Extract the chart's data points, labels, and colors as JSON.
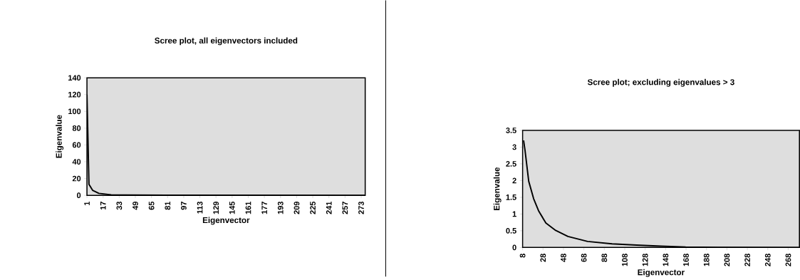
{
  "chart_data": [
    {
      "type": "line",
      "title": "Scree plot, all eigenvectors included",
      "xlabel": "Eigenvector",
      "ylabel": "Eigenvalue",
      "xlim": [
        1,
        277
      ],
      "ylim": [
        0,
        140
      ],
      "xticks": [
        1,
        17,
        33,
        49,
        65,
        81,
        97,
        113,
        129,
        145,
        161,
        177,
        193,
        209,
        225,
        241,
        257,
        273
      ],
      "yticks": [
        0,
        20,
        40,
        60,
        80,
        100,
        120,
        140
      ],
      "series": [
        {
          "color": "#000000",
          "x": [
            1,
            3,
            6.6,
            12.8,
            25,
            40,
            80,
            277
          ],
          "values": [
            120,
            13,
            6,
            2.4,
            0.6,
            0.3,
            0.1,
            0
          ]
        }
      ]
    },
    {
      "type": "line",
      "title": "Scree plot; excluding eigenvalues > 3",
      "xlabel": "Eigenvector",
      "ylabel": "Eigenvalue",
      "xlim": [
        8,
        279
      ],
      "ylim": [
        0,
        3.5
      ],
      "xticks": [
        8,
        28,
        48,
        68,
        88,
        108,
        128,
        148,
        168,
        188,
        208,
        228,
        248,
        268
      ],
      "yticks": [
        0,
        0.5,
        1,
        1.5,
        2,
        2.5,
        3,
        3.5
      ],
      "series": [
        {
          "color": "#000000",
          "x": [
            9,
            10.4,
            14,
            18.8,
            23.6,
            30.8,
            40.4,
            52.4,
            71.6,
            95.6,
            119.6,
            143.6,
            167.6,
            200,
            279
          ],
          "values": [
            3.2,
            2.9,
            1.98,
            1.46,
            1.1,
            0.73,
            0.51,
            0.33,
            0.18,
            0.11,
            0.07,
            0.04,
            0.015,
            0.005,
            0
          ]
        }
      ]
    }
  ]
}
